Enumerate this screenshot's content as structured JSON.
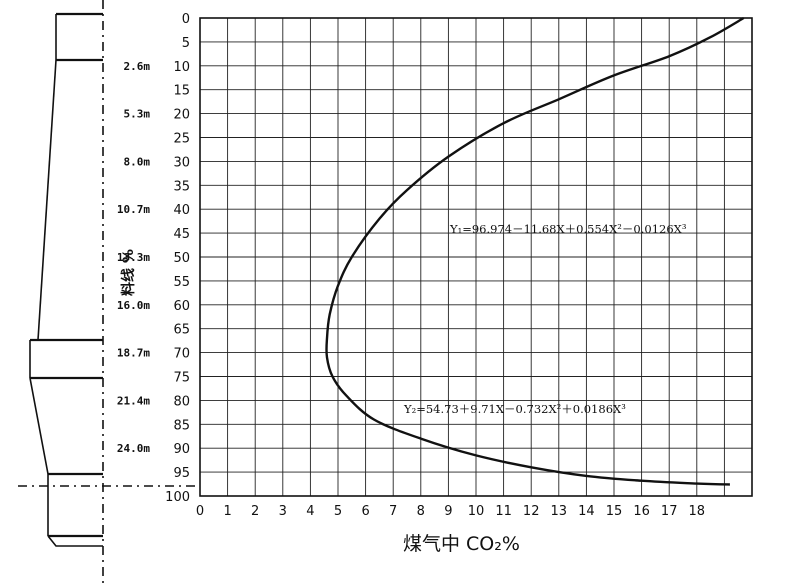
{
  "chart_data": {
    "type": "line",
    "xlabel": "煤气中 CO₂%",
    "ylabel": "料线 %",
    "xlim": [
      0,
      20
    ],
    "ylim": [
      0,
      100
    ],
    "y_inverted": true,
    "grid": true,
    "x_ticks": [
      "0",
      "1",
      "2",
      "3",
      "4",
      "5",
      "6",
      "7",
      "8",
      "9",
      "10",
      "11",
      "12",
      "13",
      "14",
      "15",
      "16",
      "17",
      "18"
    ],
    "y_ticks": [
      "0",
      "5",
      "10",
      "15",
      "20",
      "25",
      "30",
      "35",
      "40",
      "45",
      "50",
      "55",
      "60",
      "65",
      "70",
      "75",
      "80",
      "85",
      "90",
      "95",
      "100"
    ],
    "furnace_height_labels": [
      "2.6m",
      "5.3m",
      "8.0m",
      "10.7m",
      "13.3m",
      "16.0m",
      "18.7m",
      "21.4m",
      "24.0m"
    ],
    "annotations": [
      "Y₁=96.974－11.68X＋0.554X²－0.0126X³",
      "Y₂=54.73＋9.71X－0.732X²＋0.0186X³"
    ],
    "series": [
      {
        "points": [
          {
            "x": 19.7,
            "y": 0
          },
          {
            "x": 18.5,
            "y": 4
          },
          {
            "x": 17.0,
            "y": 8
          },
          {
            "x": 15.0,
            "y": 12
          },
          {
            "x": 13.0,
            "y": 17
          },
          {
            "x": 11.0,
            "y": 22
          },
          {
            "x": 9.0,
            "y": 29
          },
          {
            "x": 7.5,
            "y": 36
          },
          {
            "x": 6.5,
            "y": 42
          },
          {
            "x": 5.5,
            "y": 50
          },
          {
            "x": 5.0,
            "y": 56
          },
          {
            "x": 4.7,
            "y": 62
          },
          {
            "x": 4.6,
            "y": 67
          },
          {
            "x": 4.6,
            "y": 71
          },
          {
            "x": 4.8,
            "y": 75
          },
          {
            "x": 5.3,
            "y": 79
          },
          {
            "x": 6.3,
            "y": 84
          },
          {
            "x": 8.0,
            "y": 88
          },
          {
            "x": 10.0,
            "y": 91.5
          },
          {
            "x": 12.0,
            "y": 94
          },
          {
            "x": 14.0,
            "y": 95.8
          },
          {
            "x": 16.0,
            "y": 96.8
          },
          {
            "x": 18.0,
            "y": 97.4
          },
          {
            "x": 19.2,
            "y": 97.6
          }
        ]
      }
    ]
  }
}
